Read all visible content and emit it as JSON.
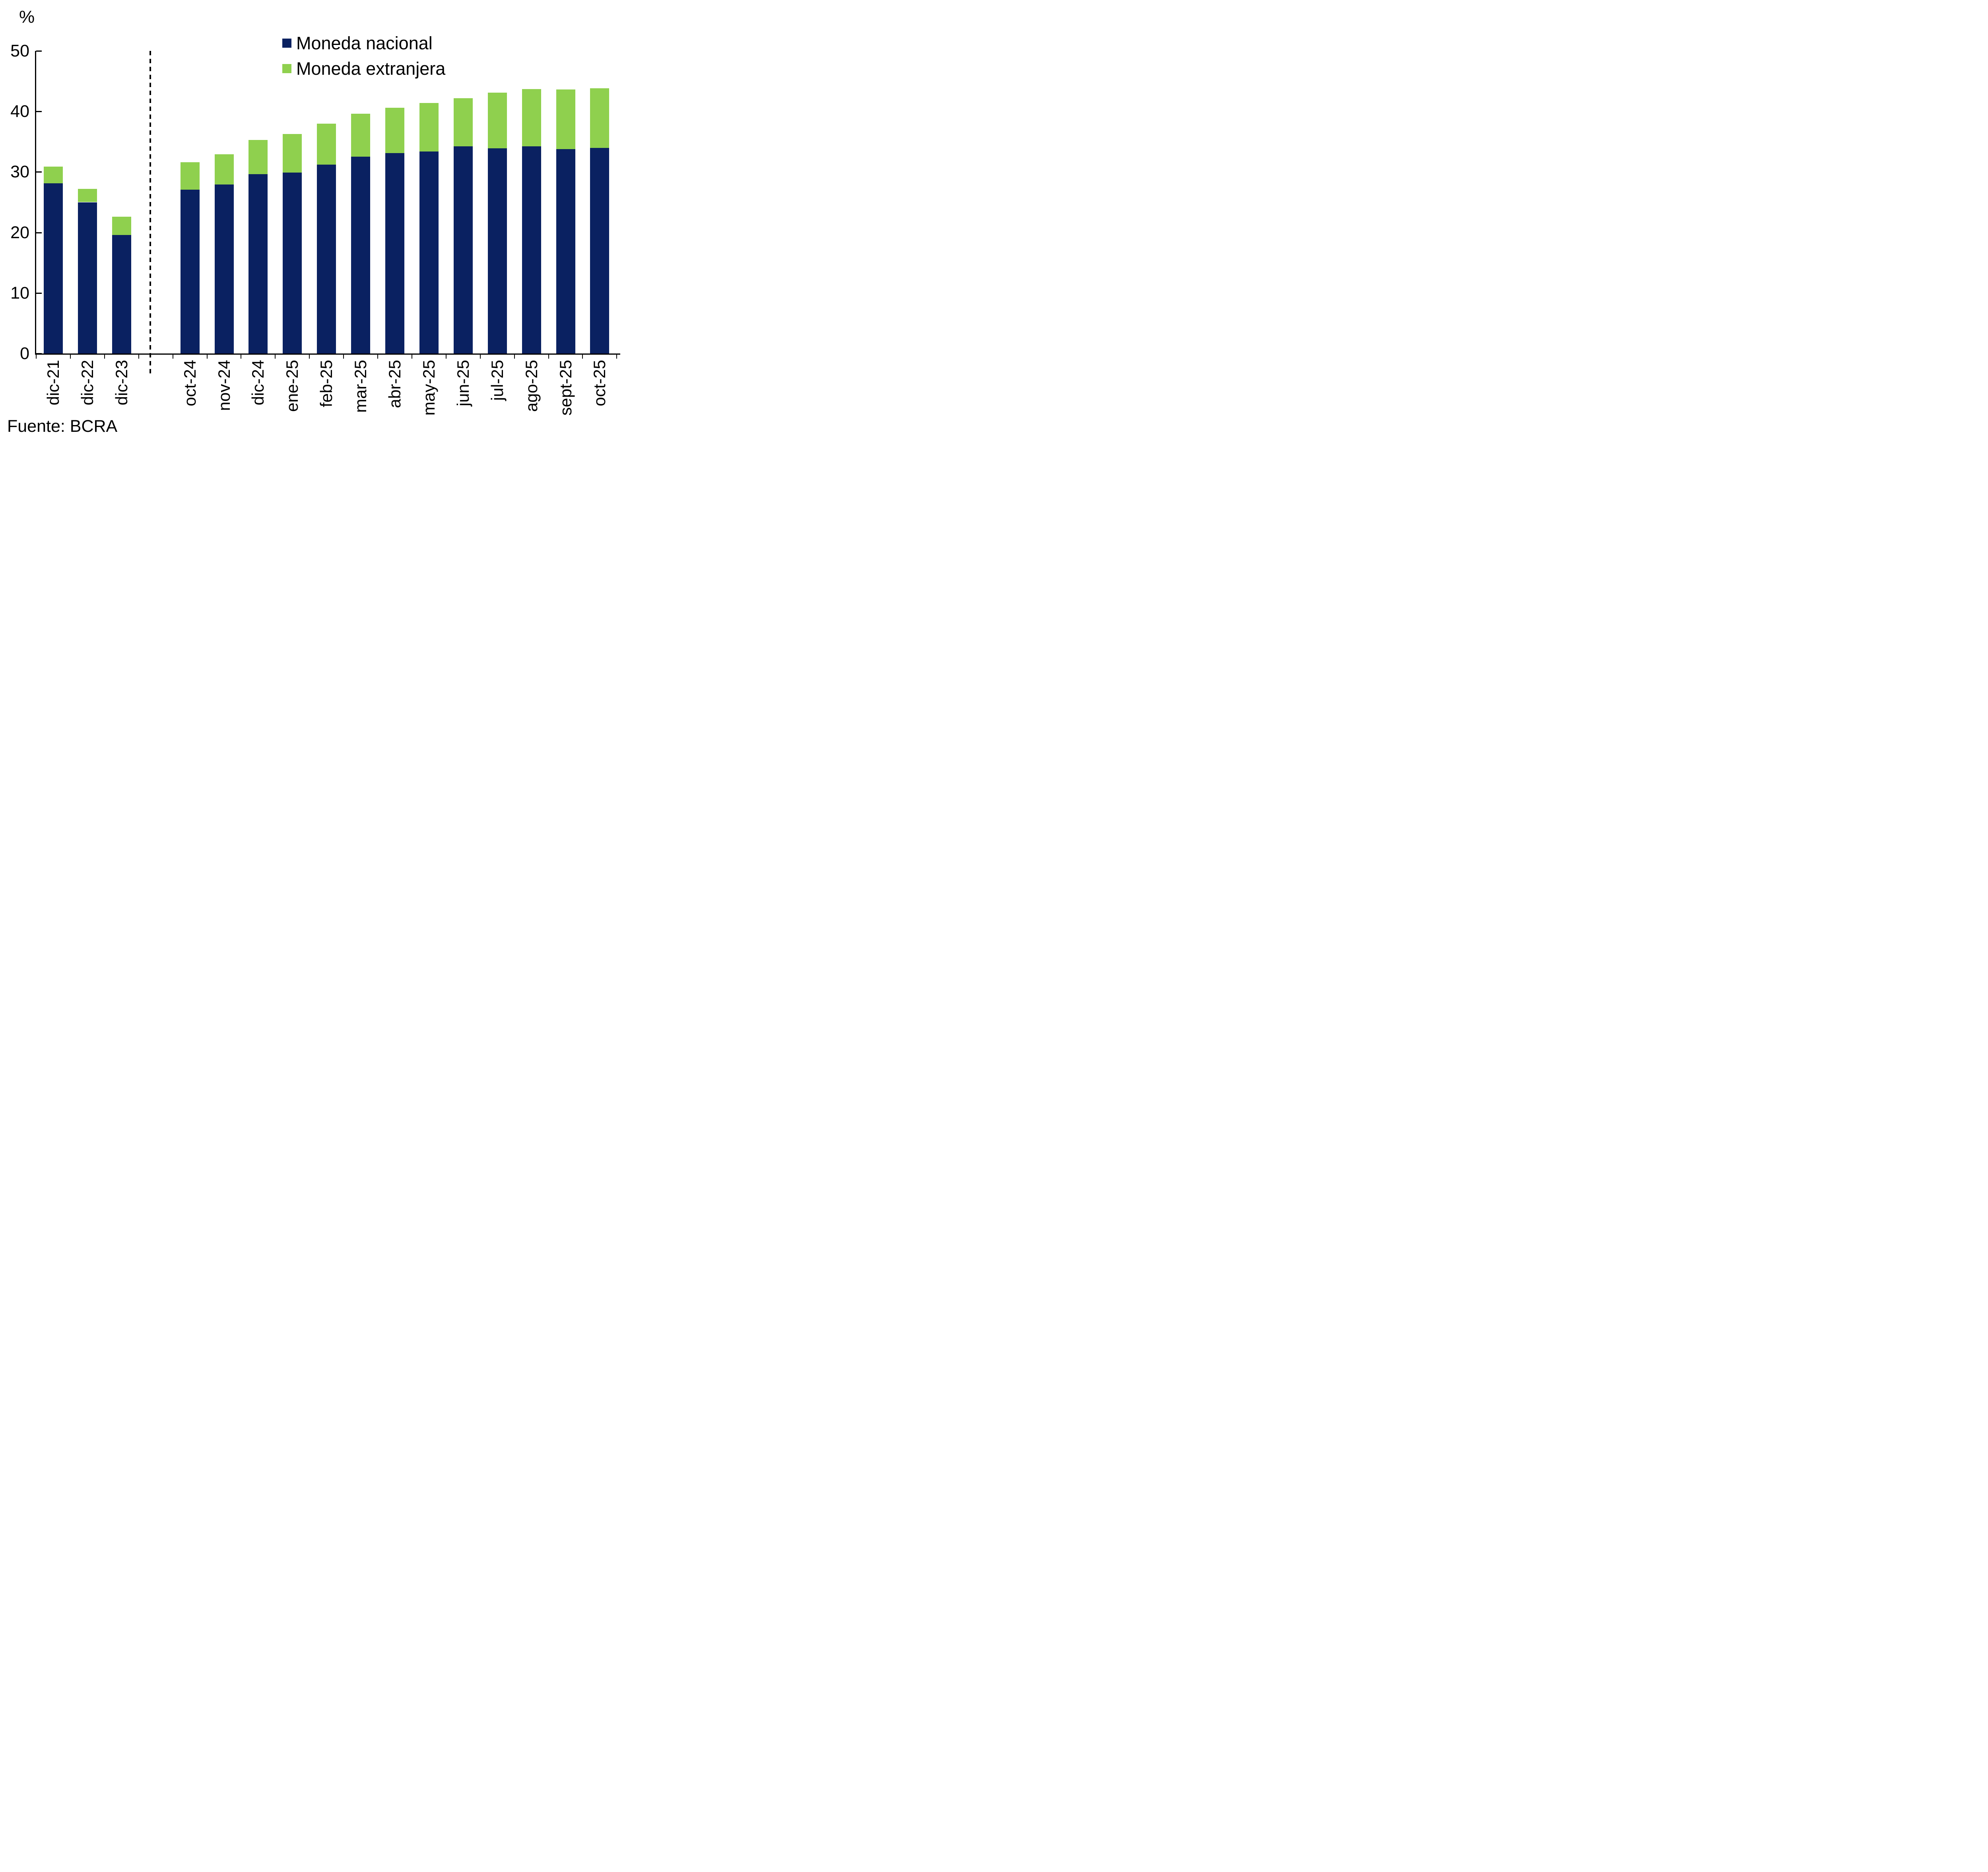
{
  "percent_label": "%",
  "source_note": "Fuente: BCRA",
  "chart_data": {
    "type": "bar",
    "stacked": true,
    "title": "",
    "xlabel": "",
    "ylabel": "%",
    "ylim": [
      0,
      50
    ],
    "yticks": [
      0,
      10,
      20,
      30,
      40,
      50
    ],
    "grid": false,
    "legend_position": "top-center",
    "group_break_after": "dic-23",
    "categories": [
      "dic-21",
      "dic-22",
      "dic-23",
      "oct-24",
      "nov-24",
      "dic-24",
      "ene-25",
      "feb-25",
      "mar-25",
      "abr-25",
      "may-25",
      "jun-25",
      "jul-25",
      "ago-25",
      "sept-25",
      "oct-25"
    ],
    "series": [
      {
        "name": "Moneda nacional",
        "color": "#0a2161",
        "values": [
          28.1,
          25.0,
          19.6,
          27.1,
          27.9,
          29.6,
          29.9,
          31.2,
          32.5,
          33.1,
          33.4,
          34.2,
          33.9,
          34.2,
          33.8,
          34.0
        ]
      },
      {
        "name": "Moneda extranjera",
        "color": "#8fd04e",
        "values": [
          2.8,
          2.2,
          3.0,
          4.5,
          5.0,
          5.7,
          6.4,
          6.8,
          7.1,
          7.5,
          8.0,
          8.0,
          9.2,
          9.5,
          9.8,
          9.8
        ]
      }
    ],
    "totals": [
      30.9,
      27.2,
      22.6,
      31.6,
      32.9,
      35.3,
      36.3,
      38.0,
      39.6,
      40.6,
      41.4,
      42.2,
      43.1,
      43.7,
      43.6,
      43.8
    ]
  }
}
